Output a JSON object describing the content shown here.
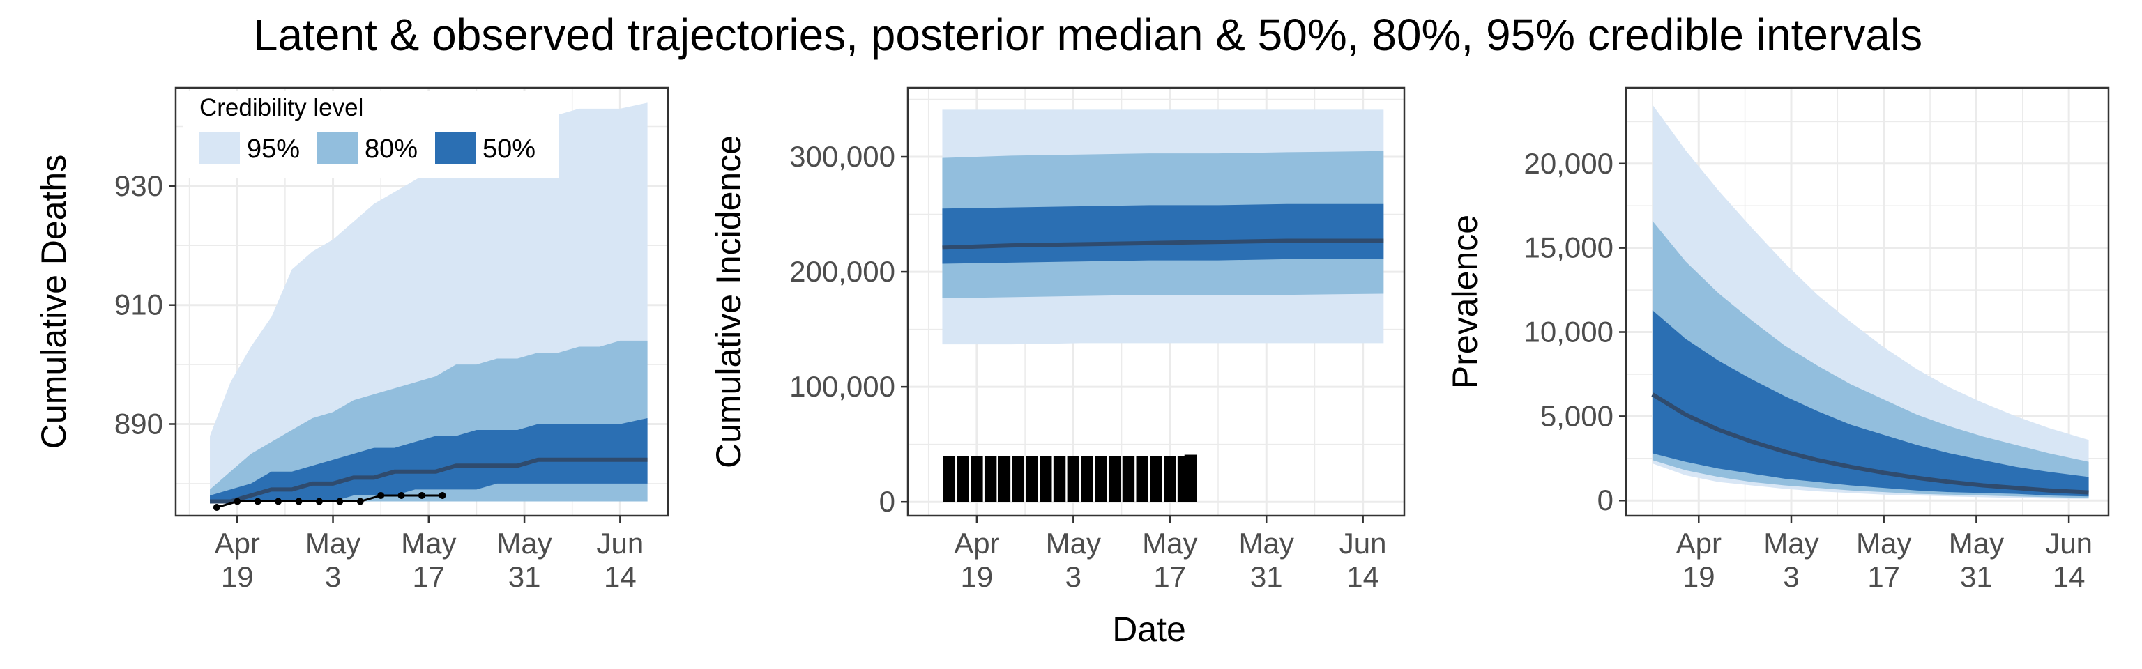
{
  "figure": {
    "title": "Latent & observed trajectories, posterior median & 50%, 80%, 95% credible intervals",
    "xlabel": "Date",
    "legend": {
      "title": "Credibility level",
      "entries": [
        {
          "label": "95%",
          "color": "#d8e6f5"
        },
        {
          "label": "80%",
          "color": "#92bedd"
        },
        {
          "label": "50%",
          "color": "#2b6fb3"
        }
      ]
    },
    "colors": {
      "band95": "#d8e6f5",
      "band80": "#92bedd",
      "band50": "#2b6fb3",
      "median": "#2f4b6e",
      "observed": "#000000",
      "panel_border": "#333333",
      "grid": "#ebebeb"
    }
  },
  "chart_data": [
    {
      "type": "area",
      "ylabel": "Cumulative Deaths",
      "x_axis": "date",
      "xlim": [
        "2020-04-10",
        "2020-06-21"
      ],
      "ylim": [
        874.6,
        946.5
      ],
      "xticks": [
        {
          "date": "2020-04-19",
          "label": [
            "Apr",
            "19"
          ]
        },
        {
          "date": "2020-05-03",
          "label": [
            "May",
            "3"
          ]
        },
        {
          "date": "2020-05-17",
          "label": [
            "May",
            "17"
          ]
        },
        {
          "date": "2020-05-31",
          "label": [
            "May",
            "31"
          ]
        },
        {
          "date": "2020-06-14",
          "label": [
            "Jun",
            "14"
          ]
        }
      ],
      "yticks": [
        {
          "value": 890,
          "label": "890"
        },
        {
          "value": 910,
          "label": "910"
        },
        {
          "value": 930,
          "label": "930"
        }
      ],
      "x": [
        "2020-04-15",
        "2020-04-18",
        "2020-04-21",
        "2020-04-24",
        "2020-04-27",
        "2020-04-30",
        "2020-05-03",
        "2020-05-06",
        "2020-05-09",
        "2020-05-12",
        "2020-05-15",
        "2020-05-18",
        "2020-05-21",
        "2020-05-24",
        "2020-05-27",
        "2020-05-30",
        "2020-06-02",
        "2020-06-05",
        "2020-06-08",
        "2020-06-11",
        "2020-06-14",
        "2020-06-18"
      ],
      "band95": {
        "lower": [
          877,
          877,
          877,
          877,
          877,
          877,
          877,
          877,
          877,
          877,
          877,
          877,
          877,
          877,
          877,
          877,
          877,
          877,
          877,
          877,
          877,
          877
        ],
        "upper": [
          888,
          897,
          903,
          908,
          916,
          919,
          921,
          924,
          927,
          929,
          931,
          933,
          935,
          937,
          939,
          940,
          941,
          942,
          943,
          943,
          943,
          944
        ]
      },
      "band80": {
        "lower": [
          877,
          877,
          877,
          877,
          877,
          877,
          877,
          877,
          877,
          877,
          877,
          877,
          877,
          877,
          877,
          877,
          877,
          877,
          877,
          877,
          877,
          877
        ],
        "upper": [
          879,
          882,
          885,
          887,
          889,
          891,
          892,
          894,
          895,
          896,
          897,
          898,
          900,
          900,
          901,
          901,
          902,
          902,
          903,
          903,
          904,
          904
        ]
      },
      "band50": {
        "lower": [
          877,
          877,
          877,
          877,
          877,
          877,
          877,
          878,
          878,
          878,
          879,
          879,
          879,
          879,
          880,
          880,
          880,
          880,
          880,
          880,
          880,
          880
        ],
        "upper": [
          878,
          879,
          880,
          882,
          882,
          883,
          884,
          885,
          886,
          886,
          887,
          888,
          888,
          889,
          889,
          889,
          890,
          890,
          890,
          890,
          890,
          891
        ]
      },
      "median": [
        877,
        877,
        878,
        879,
        879,
        880,
        880,
        881,
        881,
        882,
        882,
        882,
        883,
        883,
        883,
        883,
        884,
        884,
        884,
        884,
        884,
        884
      ],
      "observed": {
        "x": [
          "2020-04-16",
          "2020-04-19",
          "2020-04-22",
          "2020-04-25",
          "2020-04-28",
          "2020-05-01",
          "2020-05-04",
          "2020-05-07",
          "2020-05-10",
          "2020-05-13",
          "2020-05-16",
          "2020-05-19"
        ],
        "y": [
          876,
          877,
          877,
          877,
          877,
          877,
          877,
          877,
          878,
          878,
          878,
          878
        ]
      }
    },
    {
      "type": "area",
      "ylabel": "Cumulative Incidence",
      "x_axis": "date",
      "xlim": [
        "2020-04-09",
        "2020-06-20"
      ],
      "ylim": [
        -12000,
        360000
      ],
      "xticks": [
        {
          "date": "2020-04-19",
          "label": [
            "Apr",
            "19"
          ]
        },
        {
          "date": "2020-05-03",
          "label": [
            "May",
            "3"
          ]
        },
        {
          "date": "2020-05-17",
          "label": [
            "May",
            "17"
          ]
        },
        {
          "date": "2020-05-31",
          "label": [
            "May",
            "31"
          ]
        },
        {
          "date": "2020-06-14",
          "label": [
            "Jun",
            "14"
          ]
        }
      ],
      "yticks": [
        {
          "value": 0,
          "label": "0"
        },
        {
          "value": 100000,
          "label": "100,000"
        },
        {
          "value": 200000,
          "label": "200,000"
        },
        {
          "value": 300000,
          "label": "300,000"
        }
      ],
      "x": [
        "2020-04-14",
        "2020-04-24",
        "2020-05-04",
        "2020-05-14",
        "2020-05-24",
        "2020-06-03",
        "2020-06-17"
      ],
      "band95": {
        "lower": [
          137000,
          137000,
          138000,
          138000,
          138000,
          138000,
          138000
        ],
        "upper": [
          341000,
          341000,
          341000,
          341000,
          341000,
          341000,
          341000
        ]
      },
      "band80": {
        "lower": [
          177000,
          178000,
          179000,
          180000,
          180000,
          180000,
          181000
        ],
        "upper": [
          299000,
          301000,
          302000,
          303000,
          303000,
          304000,
          305000
        ]
      },
      "band50": {
        "lower": [
          207000,
          208000,
          209000,
          210000,
          210000,
          211000,
          211000
        ],
        "upper": [
          255000,
          256000,
          257000,
          258000,
          258000,
          259000,
          259000
        ]
      },
      "median": [
        221000,
        223000,
        224000,
        225000,
        226000,
        227000,
        227000
      ],
      "bars": {
        "x": [
          "2020-04-15",
          "2020-04-17",
          "2020-04-19",
          "2020-04-21",
          "2020-04-23",
          "2020-04-25",
          "2020-04-27",
          "2020-04-29",
          "2020-05-01",
          "2020-05-03",
          "2020-05-05",
          "2020-05-07",
          "2020-05-09",
          "2020-05-11",
          "2020-05-13",
          "2020-05-15",
          "2020-05-17",
          "2020-05-19",
          "2020-05-20"
        ],
        "values": [
          40000,
          40000,
          40000,
          40000,
          40000,
          40000,
          40000,
          40000,
          40000,
          40000,
          40000,
          40000,
          40000,
          40000,
          40000,
          40000,
          40000,
          40000,
          41000
        ]
      }
    },
    {
      "type": "area",
      "ylabel": "Prevalence",
      "x_axis": "date",
      "xlim": [
        "2020-04-08",
        "2020-06-20"
      ],
      "ylim": [
        -900,
        24500
      ],
      "xticks": [
        {
          "date": "2020-04-19",
          "label": [
            "Apr",
            "19"
          ]
        },
        {
          "date": "2020-05-03",
          "label": [
            "May",
            "3"
          ]
        },
        {
          "date": "2020-05-17",
          "label": [
            "May",
            "17"
          ]
        },
        {
          "date": "2020-05-31",
          "label": [
            "May",
            "31"
          ]
        },
        {
          "date": "2020-06-14",
          "label": [
            "Jun",
            "14"
          ]
        }
      ],
      "yticks": [
        {
          "value": 0,
          "label": "0"
        },
        {
          "value": 5000,
          "label": "5,000"
        },
        {
          "value": 10000,
          "label": "10,000"
        },
        {
          "value": 15000,
          "label": "15,000"
        },
        {
          "value": 20000,
          "label": "20,000"
        }
      ],
      "x": [
        "2020-04-12",
        "2020-04-17",
        "2020-04-22",
        "2020-04-27",
        "2020-05-02",
        "2020-05-07",
        "2020-05-12",
        "2020-05-17",
        "2020-05-22",
        "2020-05-27",
        "2020-06-01",
        "2020-06-06",
        "2020-06-11",
        "2020-06-17"
      ],
      "band95": {
        "lower": [
          2200,
          1500,
          1100,
          900,
          700,
          550,
          450,
          350,
          300,
          250,
          200,
          150,
          120,
          100
        ],
        "upper": [
          23500,
          20800,
          18400,
          16200,
          14100,
          12200,
          10600,
          9100,
          7800,
          6700,
          5800,
          5000,
          4300,
          3600
        ]
      },
      "band80": {
        "lower": [
          2400,
          1800,
          1400,
          1100,
          900,
          750,
          600,
          500,
          400,
          350,
          300,
          250,
          200,
          150
        ],
        "upper": [
          16600,
          14200,
          12300,
          10700,
          9200,
          8000,
          6900,
          6000,
          5100,
          4400,
          3800,
          3300,
          2800,
          2300
        ]
      },
      "band50": {
        "lower": [
          2800,
          2300,
          1900,
          1600,
          1300,
          1100,
          900,
          750,
          600,
          500,
          450,
          400,
          300,
          250
        ],
        "upper": [
          11300,
          9600,
          8300,
          7200,
          6200,
          5300,
          4500,
          3900,
          3300,
          2800,
          2400,
          2000,
          1700,
          1400
        ]
      },
      "median": [
        6300,
        5100,
        4200,
        3500,
        2900,
        2400,
        2000,
        1650,
        1350,
        1100,
        900,
        750,
        600,
        480
      ]
    }
  ]
}
